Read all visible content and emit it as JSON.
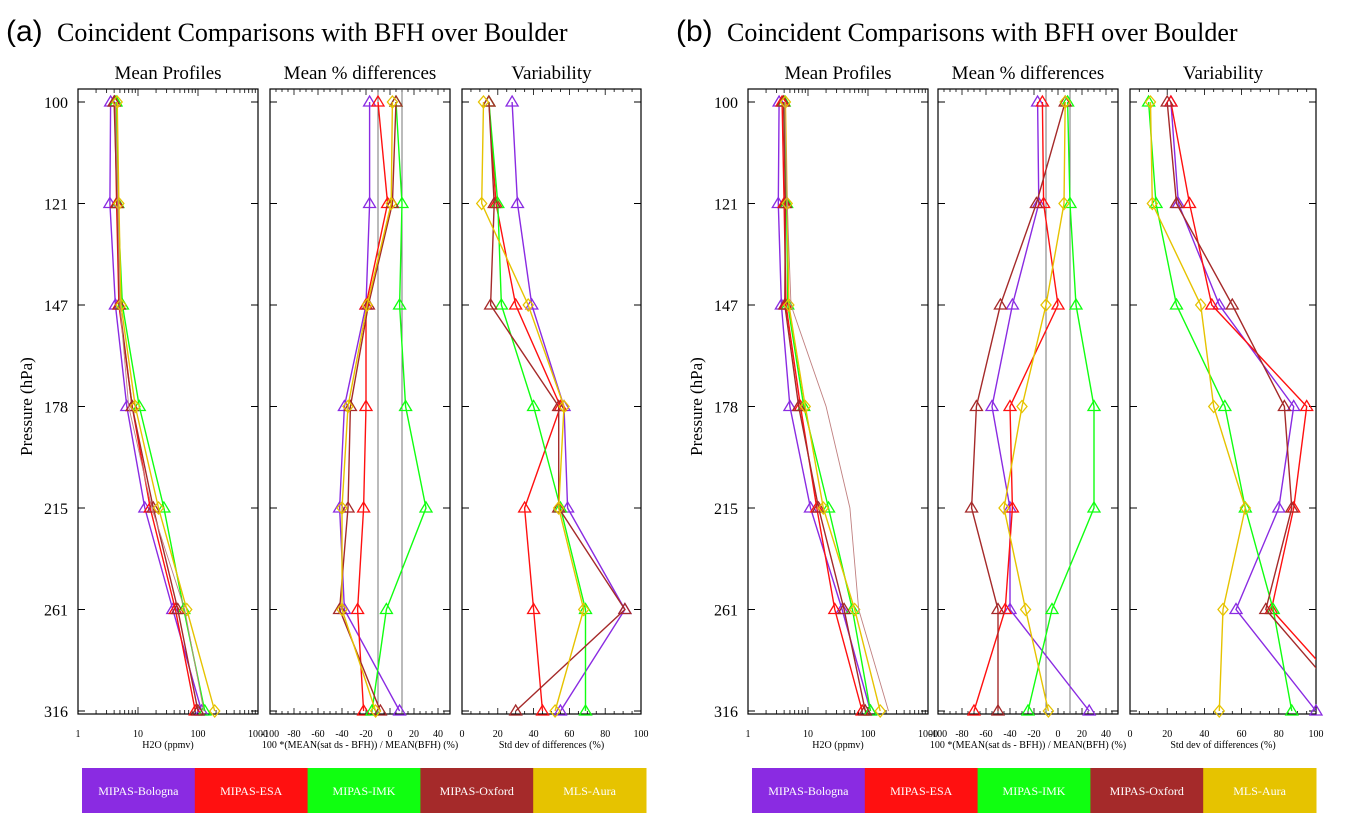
{
  "chart_data": [
    {
      "type": "line",
      "panel_letter": "(a)",
      "title": "Coincident Comparisons with BFH over Boulder",
      "ylabel": "Pressure (hPa)",
      "pressure_levels": [
        100,
        121,
        147,
        178,
        215,
        261,
        316
      ],
      "y_tick_labels": [
        "100",
        "121",
        "147",
        "178",
        "215",
        "261",
        "316"
      ],
      "subplots": [
        {
          "subtitle": "Mean Profiles",
          "xlabel": "H2O (ppmv)",
          "x_scale": "log",
          "xlim": [
            1,
            1000
          ],
          "x_ticks": [
            1,
            10,
            100,
            1000
          ],
          "x_tick_labels": [
            "1",
            "10",
            "100",
            "1000"
          ],
          "series": [
            {
              "name": "MIPAS-Bologna",
              "marker": "triangle",
              "values": [
                3.5,
                3.4,
                4.2,
                6.5,
                13,
                38,
                115
              ]
            },
            {
              "name": "MIPAS-ESA",
              "marker": "triangle",
              "values": [
                4.1,
                4.4,
                4.8,
                8,
                16,
                42,
                90
              ]
            },
            {
              "name": "MIPAS-IMK",
              "marker": "triangle",
              "values": [
                4.3,
                4.6,
                5.5,
                10.5,
                27,
                58,
                130
              ]
            },
            {
              "name": "MIPAS-Oxford",
              "marker": "triangle",
              "values": [
                4.0,
                4.5,
                4.9,
                8,
                18,
                46,
                100
              ]
            },
            {
              "name": "MLS-Aura",
              "marker": "diamond",
              "values": [
                4.5,
                4.8,
                5.2,
                9,
                22,
                65,
                190
              ]
            },
            {
              "name": "BFH",
              "marker": "none",
              "values": [
                4.2,
                4.6,
                5.0,
                7,
                17,
                60,
                125
              ]
            }
          ]
        },
        {
          "subtitle": "Mean % differences",
          "xlabel": "100 *(MEAN(sat ds - BFH)) / MEAN(BFH) (%)",
          "xlim": [
            -100,
            50
          ],
          "x_ticks": [
            -100,
            -80,
            -60,
            -40,
            -20,
            0,
            20,
            40
          ],
          "x_tick_labels": [
            "-100",
            "-80",
            "-60",
            "-40",
            "-20",
            "0",
            "20",
            "40"
          ],
          "series": [
            {
              "name": "MIPAS-Bologna",
              "marker": "triangle",
              "values": [
                -17,
                -17,
                -20,
                -38,
                -42,
                -38,
                8
              ]
            },
            {
              "name": "MIPAS-ESA",
              "marker": "triangle",
              "values": [
                -10,
                -2,
                -20,
                -20,
                -22,
                -27,
                -22
              ]
            },
            {
              "name": "MIPAS-IMK",
              "marker": "triangle",
              "values": [
                5,
                10,
                8,
                13,
                30,
                -3,
                -15
              ]
            },
            {
              "name": "MIPAS-Oxford",
              "marker": "triangle",
              "values": [
                5,
                2,
                -18,
                -33,
                -35,
                -42,
                -8
              ]
            },
            {
              "name": "MLS-Aura",
              "marker": "diamond",
              "values": [
                2,
                1,
                -19,
                -35,
                -40,
                -40,
                -12
              ]
            }
          ]
        },
        {
          "subtitle": "Variability",
          "xlabel": "Std dev of differences (%)",
          "xlim": [
            0,
            100
          ],
          "x_ticks": [
            0,
            20,
            40,
            60,
            80,
            100
          ],
          "x_tick_labels": [
            "0",
            "20",
            "40",
            "60",
            "80",
            "100"
          ],
          "series": [
            {
              "name": "MIPAS-Bologna",
              "marker": "triangle",
              "values": [
                28,
                31,
                39,
                57,
                59,
                91,
                55
              ]
            },
            {
              "name": "MIPAS-ESA",
              "marker": "triangle",
              "values": [
                15,
                19,
                30,
                55,
                35,
                40,
                45
              ]
            },
            {
              "name": "MIPAS-IMK",
              "marker": "triangle",
              "values": [
                15,
                20,
                22,
                40,
                55,
                69,
                69
              ]
            },
            {
              "name": "MIPAS-Oxford",
              "marker": "triangle",
              "values": [
                15,
                18,
                16,
                54,
                54,
                91,
                30
              ]
            },
            {
              "name": "MLS-Aura",
              "marker": "diamond",
              "values": [
                12,
                11,
                37,
                57,
                54,
                68,
                52
              ]
            }
          ]
        }
      ]
    },
    {
      "type": "line",
      "panel_letter": "(b)",
      "title": "Coincident Comparisons with BFH over Boulder",
      "ylabel": "Pressure (hPa)",
      "pressure_levels": [
        100,
        121,
        147,
        178,
        215,
        261,
        316
      ],
      "y_tick_labels": [
        "100",
        "121",
        "147",
        "178",
        "215",
        "261",
        "316"
      ],
      "subplots": [
        {
          "subtitle": "Mean Profiles",
          "xlabel": "H2O (ppmv)",
          "x_scale": "log",
          "xlim": [
            1,
            1000
          ],
          "x_ticks": [
            1,
            10,
            100,
            1000
          ],
          "x_tick_labels": [
            "1",
            "10",
            "100",
            "1000"
          ],
          "series": [
            {
              "name": "MIPAS-Bologna",
              "marker": "triangle",
              "values": [
                3.3,
                3.2,
                3.6,
                5,
                11,
                37,
                110
              ]
            },
            {
              "name": "MIPAS-ESA",
              "marker": "triangle",
              "values": [
                3.7,
                4,
                4.3,
                7.5,
                14,
                28,
                80
              ]
            },
            {
              "name": "MIPAS-IMK",
              "marker": "triangle",
              "values": [
                4,
                4.4,
                4.6,
                8.5,
                22,
                55,
                110
              ]
            },
            {
              "name": "MIPAS-Oxford",
              "marker": "triangle",
              "values": [
                3.9,
                4.2,
                4.1,
                7,
                15,
                40,
                90
              ]
            },
            {
              "name": "MLS-Aura",
              "marker": "diamond",
              "values": [
                4.2,
                4.5,
                4.8,
                9,
                18,
                60,
                160
              ]
            },
            {
              "name": "BFH",
              "marker": "none",
              "values": [
                4.1,
                4.5,
                5.2,
                20,
                50,
                70,
                220
              ]
            }
          ]
        },
        {
          "subtitle": "Mean % differences",
          "xlabel": "100 *(MEAN(sat ds - BFH)) / MEAN(BFH) (%)",
          "xlim": [
            -100,
            50
          ],
          "x_ticks": [
            -100,
            -80,
            -60,
            -40,
            -20,
            0,
            20,
            40
          ],
          "x_tick_labels": [
            "-100",
            "-80",
            "-60",
            "-40",
            "-20",
            "0",
            "20",
            "40"
          ],
          "series": [
            {
              "name": "MIPAS-Bologna",
              "marker": "triangle",
              "values": [
                -17,
                -16,
                -38,
                -55,
                -40,
                -40,
                26
              ]
            },
            {
              "name": "MIPAS-ESA",
              "marker": "triangle",
              "values": [
                -13,
                -12,
                0,
                -40,
                -38,
                -44,
                -70
              ]
            },
            {
              "name": "MIPAS-IMK",
              "marker": "triangle",
              "values": [
                8,
                10,
                15,
                30,
                30,
                -5,
                -25
              ]
            },
            {
              "name": "MIPAS-Oxford",
              "marker": "triangle",
              "values": [
                6,
                -18,
                -48,
                -68,
                -72,
                -50,
                -50
              ]
            },
            {
              "name": "MLS-Aura",
              "marker": "diamond",
              "values": [
                6,
                5,
                -10,
                -30,
                -45,
                -27,
                -8
              ]
            }
          ]
        },
        {
          "subtitle": "Variability",
          "xlabel": "Std dev of differences (%)",
          "xlim": [
            0,
            100
          ],
          "x_ticks": [
            0,
            20,
            40,
            60,
            80,
            100
          ],
          "x_tick_labels": [
            "0",
            "20",
            "40",
            "60",
            "80",
            "100"
          ],
          "series": [
            {
              "name": "MIPAS-Bologna",
              "marker": "triangle",
              "values": [
                22,
                26,
                48,
                88,
                80,
                57,
                100
              ]
            },
            {
              "name": "MIPAS-ESA",
              "marker": "triangle",
              "values": [
                22,
                32,
                44,
                95,
                88,
                76,
                125
              ]
            },
            {
              "name": "MIPAS-IMK",
              "marker": "triangle",
              "values": [
                10,
                14,
                25,
                51,
                62,
                77,
                87
              ]
            },
            {
              "name": "MIPAS-Oxford",
              "marker": "triangle",
              "values": [
                20,
                25,
                55,
                83,
                87,
                73,
                120
              ]
            },
            {
              "name": "MLS-Aura",
              "marker": "diamond",
              "values": [
                11,
                12,
                38,
                45,
                62,
                50,
                48
              ]
            }
          ]
        }
      ]
    }
  ],
  "legend": {
    "items": [
      {
        "name": "MIPAS-Bologna",
        "color": "#8a2be2"
      },
      {
        "name": "MIPAS-ESA",
        "color": "#ff1010"
      },
      {
        "name": "MIPAS-IMK",
        "color": "#10ff10"
      },
      {
        "name": "MIPAS-Oxford",
        "color": "#a52a2a"
      },
      {
        "name": "MLS-Aura",
        "color": "#e6c300"
      }
    ],
    "reference_color": "#c08080"
  }
}
